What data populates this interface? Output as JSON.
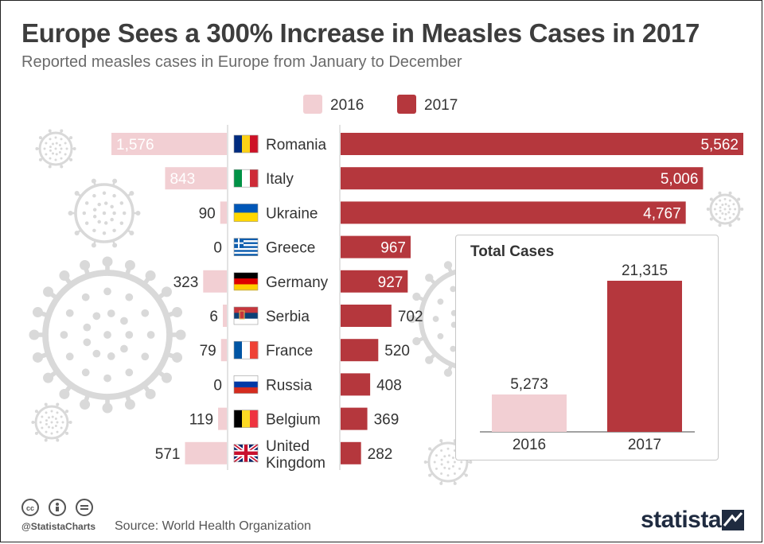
{
  "title": "Europe Sees a 300% Increase in Measles Cases in 2017",
  "subtitle": "Reported measles cases in Europe from January to December",
  "legend": [
    {
      "label": "2016",
      "color": "#f2cfd3"
    },
    {
      "label": "2017",
      "color": "#b5373d"
    }
  ],
  "chart_data": [
    {
      "type": "bar",
      "orientation": "horizontal-butterfly",
      "categories": [
        "Romania",
        "Italy",
        "Ukraine",
        "Greece",
        "Germany",
        "Serbia",
        "France",
        "Russia",
        "Belgium",
        "United Kingdom"
      ],
      "category_lines": [
        [
          "Romania"
        ],
        [
          "Italy"
        ],
        [
          "Ukraine"
        ],
        [
          "Greece"
        ],
        [
          "Germany"
        ],
        [
          "Serbia"
        ],
        [
          "France"
        ],
        [
          "Russia"
        ],
        [
          "Belgium"
        ],
        [
          "United",
          "Kingdom"
        ]
      ],
      "value_labels_2016": [
        "1,576",
        "843",
        "90",
        "0",
        "323",
        "6",
        "79",
        "0",
        "119",
        "571"
      ],
      "value_labels_2017": [
        "5,562",
        "5,006",
        "4,767",
        "967",
        "927",
        "702",
        "520",
        "408",
        "369",
        "282"
      ],
      "series": [
        {
          "name": "2016",
          "values": [
            1576,
            843,
            90,
            0,
            323,
            6,
            79,
            0,
            119,
            571
          ]
        },
        {
          "name": "2017",
          "values": [
            5562,
            5006,
            4767,
            967,
            927,
            702,
            520,
            408,
            369,
            282
          ]
        }
      ],
      "flag_icons": [
        "flag-romania-icon",
        "flag-italy-icon",
        "flag-ukraine-icon",
        "flag-greece-icon",
        "flag-germany-icon",
        "flag-serbia-icon",
        "flag-france-icon",
        "flag-russia-icon",
        "flag-belgium-icon",
        "flag-uk-icon"
      ],
      "legend_position": "top-center"
    },
    {
      "type": "bar",
      "title": "Total Cases",
      "categories": [
        "2016",
        "2017"
      ],
      "values": [
        5273,
        21315
      ],
      "value_labels": [
        "5,273",
        "21,315"
      ],
      "colors": [
        "#f2cfd3",
        "#b5373d"
      ]
    }
  ],
  "footer": {
    "handle": "@StatistaCharts",
    "source": "Source: World Health Organization",
    "brand": "statista",
    "license_icons": [
      "cc-icon",
      "attribution-icon",
      "no-derivatives-icon"
    ]
  }
}
